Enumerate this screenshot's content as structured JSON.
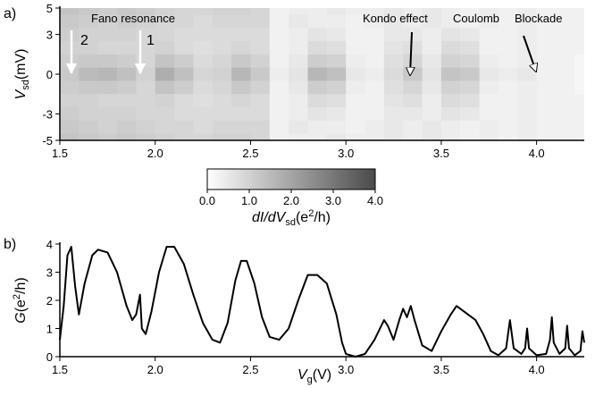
{
  "chart_data": [
    {
      "type": "heatmap",
      "label": "a)",
      "x": [
        1.55,
        1.65,
        1.75,
        1.85,
        1.95,
        2.05,
        2.15,
        2.25,
        2.35,
        2.45,
        2.55,
        2.65,
        2.75,
        2.85,
        2.95,
        3.05,
        3.15,
        3.25,
        3.35,
        3.45,
        3.55,
        3.65,
        3.75,
        3.85,
        3.95,
        4.05,
        4.15,
        4.25
      ],
      "y": [
        5,
        4,
        3,
        2,
        1,
        0,
        -1,
        -2,
        -3,
        -4,
        -5
      ],
      "z": [
        [
          1.3,
          1.2,
          1.1,
          1.2,
          1.1,
          1.0,
          0.9,
          0.9,
          1.0,
          1.0,
          0.9,
          0.3,
          0.4,
          0.4,
          0.5,
          0.4,
          0.4,
          0.5,
          0.4,
          0.5,
          0.4,
          0.3,
          0.4,
          0.3,
          0.4,
          0.3,
          0.3,
          0.3
        ],
        [
          1.2,
          1.1,
          1.0,
          1.1,
          1.0,
          0.9,
          0.9,
          0.8,
          0.9,
          0.9,
          0.9,
          0.3,
          0.5,
          0.4,
          0.4,
          0.3,
          0.4,
          0.5,
          0.4,
          0.5,
          0.4,
          0.3,
          0.4,
          0.3,
          0.4,
          0.3,
          0.3,
          0.3
        ],
        [
          1.1,
          1.0,
          1.0,
          1.0,
          0.9,
          0.9,
          0.8,
          0.8,
          0.8,
          0.8,
          0.8,
          0.3,
          0.4,
          0.6,
          0.5,
          0.3,
          0.3,
          0.5,
          0.5,
          0.4,
          0.6,
          0.5,
          0.3,
          0.3,
          0.4,
          0.3,
          0.3,
          0.3
        ],
        [
          1.0,
          1.0,
          0.9,
          0.9,
          0.9,
          1.0,
          0.8,
          0.7,
          0.8,
          0.9,
          0.8,
          0.3,
          0.4,
          0.8,
          0.7,
          0.3,
          0.3,
          0.6,
          0.7,
          0.4,
          0.8,
          0.7,
          0.3,
          0.3,
          0.4,
          0.3,
          0.3,
          0.3
        ],
        [
          1.1,
          1.2,
          1.2,
          1.1,
          0.9,
          1.3,
          1.1,
          0.8,
          0.9,
          1.2,
          1.0,
          0.3,
          0.5,
          1.1,
          1.0,
          0.4,
          0.3,
          0.7,
          0.9,
          0.5,
          1.0,
          0.9,
          0.4,
          0.3,
          0.4,
          0.3,
          0.3,
          0.2
        ],
        [
          1.2,
          1.5,
          1.6,
          1.4,
          1.0,
          1.8,
          1.4,
          0.9,
          1.0,
          1.6,
          1.2,
          0.4,
          0.6,
          1.6,
          1.4,
          0.5,
          0.4,
          0.8,
          1.2,
          0.6,
          1.3,
          1.2,
          0.5,
          0.4,
          0.5,
          0.3,
          0.3,
          0.2
        ],
        [
          1.1,
          1.2,
          1.2,
          1.1,
          0.9,
          1.3,
          1.1,
          0.8,
          0.9,
          1.2,
          1.0,
          0.3,
          0.5,
          1.1,
          1.0,
          0.4,
          0.3,
          0.7,
          0.9,
          0.5,
          1.0,
          0.9,
          0.4,
          0.3,
          0.4,
          0.3,
          0.3,
          0.2
        ],
        [
          1.0,
          1.0,
          0.9,
          0.9,
          0.9,
          1.0,
          0.8,
          0.7,
          0.8,
          0.9,
          0.8,
          0.3,
          0.4,
          0.8,
          0.7,
          0.3,
          0.3,
          0.6,
          0.7,
          0.4,
          0.8,
          0.7,
          0.3,
          0.3,
          0.4,
          0.3,
          0.3,
          0.3
        ],
        [
          1.1,
          1.0,
          1.0,
          1.0,
          0.9,
          0.9,
          0.8,
          0.8,
          0.8,
          0.8,
          0.8,
          0.3,
          0.4,
          0.6,
          0.5,
          0.3,
          0.3,
          0.5,
          0.5,
          0.4,
          0.6,
          0.5,
          0.3,
          0.3,
          0.4,
          0.3,
          0.3,
          0.3
        ],
        [
          1.2,
          1.1,
          1.0,
          1.1,
          1.0,
          0.9,
          0.9,
          0.8,
          0.9,
          0.9,
          0.9,
          0.3,
          0.5,
          0.4,
          0.4,
          0.3,
          0.4,
          0.5,
          0.4,
          0.5,
          0.4,
          0.3,
          0.4,
          0.3,
          0.4,
          0.3,
          0.3,
          0.3
        ],
        [
          1.3,
          1.2,
          1.1,
          1.2,
          1.1,
          1.0,
          0.9,
          0.9,
          1.0,
          1.0,
          0.9,
          0.3,
          0.4,
          0.4,
          0.5,
          0.4,
          0.4,
          0.5,
          0.4,
          0.5,
          0.4,
          0.3,
          0.4,
          0.3,
          0.4,
          0.3,
          0.3,
          0.3
        ]
      ],
      "xlim": [
        1.5,
        4.25
      ],
      "ylim": [
        -5,
        5
      ],
      "xticks": [
        1.5,
        {
          "value": 2,
          "label": "2.0"
        },
        2.5,
        {
          "value": 3,
          "label": "3.0"
        },
        3.5,
        {
          "value": 4,
          "label": "4.0"
        }
      ],
      "yticks": [
        5,
        3,
        0,
        -3,
        -5
      ],
      "ylabel": [
        "V",
        "sd",
        "(mV)"
      ],
      "cmap": [
        "#ffffff",
        "#4a4a4a"
      ],
      "colorbar": {
        "clim": [
          0,
          4
        ],
        "ticks": [
          {
            "value": 0,
            "label": "0.0"
          },
          {
            "value": 1,
            "label": "1.0"
          },
          {
            "value": 2,
            "label": "2.0"
          },
          {
            "value": 3,
            "label": "3.0"
          },
          {
            "value": 4,
            "label": "4.0"
          }
        ],
        "label": [
          "dI/dV",
          "sd",
          "(e",
          "2",
          "/h)"
        ]
      },
      "annotations": [
        "Fano resonance",
        "2",
        "1",
        "Kondo effect",
        "Coulomb",
        "Blockade"
      ]
    },
    {
      "type": "line",
      "label": "b)",
      "color": "#000000",
      "x": [
        1.5,
        1.52,
        1.54,
        1.56,
        1.58,
        1.6,
        1.63,
        1.67,
        1.7,
        1.75,
        1.8,
        1.85,
        1.88,
        1.9,
        1.92,
        1.93,
        1.95,
        1.98,
        2.02,
        2.06,
        2.1,
        2.15,
        2.2,
        2.25,
        2.3,
        2.34,
        2.38,
        2.42,
        2.45,
        2.48,
        2.52,
        2.56,
        2.6,
        2.65,
        2.7,
        2.75,
        2.8,
        2.85,
        2.9,
        2.95,
        2.98,
        3.0,
        3.05,
        3.1,
        3.15,
        3.2,
        3.22,
        3.25,
        3.28,
        3.3,
        3.32,
        3.34,
        3.36,
        3.4,
        3.45,
        3.5,
        3.55,
        3.58,
        3.62,
        3.68,
        3.72,
        3.76,
        3.8,
        3.84,
        3.86,
        3.88,
        3.92,
        3.94,
        3.95,
        3.96,
        4.0,
        4.05,
        4.07,
        4.08,
        4.09,
        4.12,
        4.15,
        4.16,
        4.17,
        4.2,
        4.23,
        4.24,
        4.25
      ],
      "values": [
        0.6,
        1.8,
        3.6,
        3.9,
        2.5,
        1.5,
        2.6,
        3.6,
        3.8,
        3.7,
        3.0,
        1.8,
        1.3,
        1.5,
        2.2,
        1.0,
        0.8,
        1.6,
        3.0,
        3.9,
        3.9,
        3.3,
        2.2,
        1.2,
        0.6,
        0.5,
        1.2,
        2.7,
        3.4,
        3.4,
        2.6,
        1.4,
        0.7,
        0.6,
        1.0,
        2.0,
        2.9,
        2.9,
        2.6,
        1.5,
        0.5,
        0.1,
        0.0,
        0.1,
        0.6,
        1.3,
        1.1,
        0.6,
        1.3,
        1.7,
        1.4,
        1.8,
        1.3,
        0.4,
        0.2,
        0.9,
        1.5,
        1.8,
        1.6,
        1.3,
        0.8,
        0.2,
        0.05,
        0.3,
        1.3,
        0.3,
        0.1,
        0.3,
        1.0,
        0.3,
        0.05,
        0.1,
        0.6,
        1.4,
        0.5,
        0.1,
        0.3,
        1.1,
        0.3,
        0.05,
        0.2,
        0.9,
        0.5
      ],
      "xlim": [
        1.5,
        4.25
      ],
      "ylim": [
        0,
        4
      ],
      "xticks": [
        1.5,
        {
          "value": 2,
          "label": "2.0"
        },
        2.5,
        {
          "value": 3,
          "label": "3.0"
        },
        3.5,
        {
          "value": 4,
          "label": "4.0"
        }
      ],
      "yticks": [
        0,
        1,
        2,
        3,
        4
      ],
      "xlabel": [
        "V",
        "g",
        "(V)"
      ],
      "ylabel": [
        "G",
        "(e",
        "2",
        "/h)"
      ]
    }
  ]
}
